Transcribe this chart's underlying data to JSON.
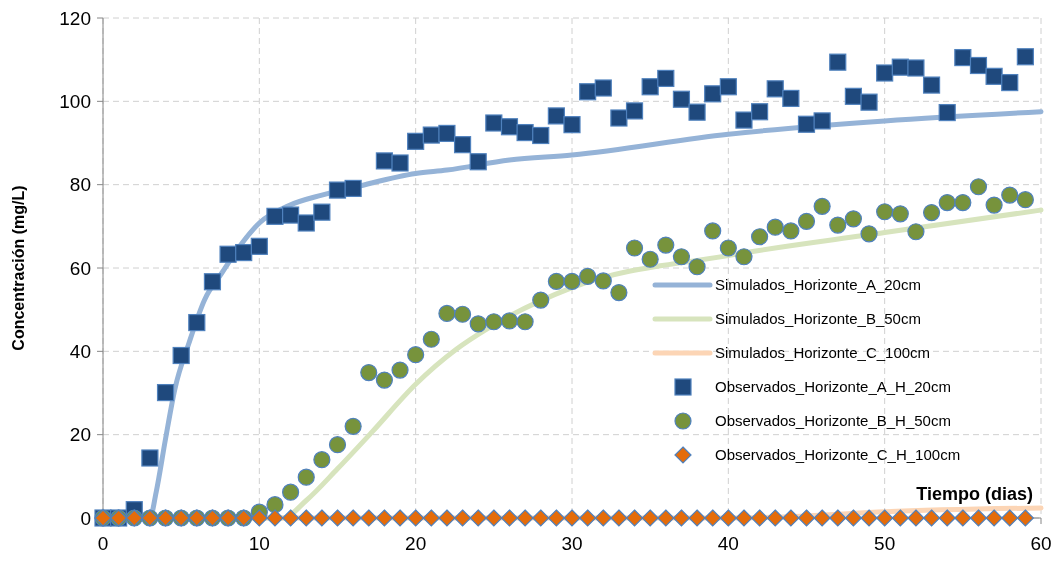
{
  "chart_data": {
    "type": "scatter",
    "xlabel": "Tiempo (dias)",
    "ylabel": "Concentración (mg/L)",
    "x": [
      0,
      1,
      2,
      3,
      4,
      5,
      6,
      7,
      8,
      9,
      10,
      11,
      12,
      13,
      14,
      15,
      16,
      17,
      18,
      19,
      20,
      21,
      22,
      23,
      24,
      25,
      26,
      27,
      28,
      29,
      30,
      31,
      32,
      33,
      34,
      35,
      36,
      37,
      38,
      39,
      40,
      41,
      42,
      43,
      44,
      45,
      46,
      47,
      48,
      49,
      50,
      51,
      52,
      53,
      54,
      55,
      56,
      57,
      58,
      59
    ],
    "xlim": [
      0,
      60
    ],
    "xticks": [
      0,
      10,
      20,
      30,
      40,
      50,
      60
    ],
    "ylim": [
      0,
      120
    ],
    "yticks": [
      0,
      20,
      40,
      60,
      80,
      100,
      120
    ],
    "grid": true,
    "legend": "right",
    "line_style": "solid",
    "series": [
      {
        "name": "Simulados_Horizonte_A_20cm",
        "type": "line",
        "color": "#95b3d7",
        "x": [
          0,
          3,
          3.4,
          4,
          4.6,
          5.5,
          6.5,
          7.6,
          8.9,
          10,
          11.9,
          14,
          16.2,
          20,
          22,
          26,
          30,
          40,
          50,
          60
        ],
        "values": [
          0,
          0,
          6.2,
          19,
          31,
          42,
          52.4,
          58.8,
          66,
          70.8,
          75,
          77.5,
          79.5,
          82.7,
          83.5,
          85.9,
          87.1,
          92.1,
          95.3,
          97.5
        ]
      },
      {
        "name": "Simulados_Horizonte_B_50cm",
        "type": "line",
        "color": "#d7e4bd",
        "x": [
          0,
          11.5,
          13,
          15,
          17.2,
          20,
          22.6,
          24.7,
          30,
          40,
          50,
          60
        ],
        "values": [
          0,
          0,
          4.2,
          11.8,
          20.6,
          32.1,
          40.5,
          45.7,
          55.3,
          63,
          68.5,
          73.9
        ]
      },
      {
        "name": "Simulados_Horizonte_C_100cm",
        "type": "line",
        "color": "#fcd5b5",
        "x": [
          0,
          40,
          45,
          50,
          60
        ],
        "values": [
          0,
          0,
          0.5,
          1.5,
          2.4
        ]
      },
      {
        "name": "Observados_Horizonte_A_H_20cm",
        "type": "scatter",
        "marker": "square",
        "color": "#1f497d",
        "values": [
          0,
          0,
          2,
          14.4,
          30.1,
          39,
          46.9,
          56.7,
          63.3,
          63.7,
          65.2,
          72.4,
          72.7,
          70.8,
          73.4,
          78.7,
          79.1,
          null,
          85.7,
          85.2,
          90.4,
          91.9,
          92.3,
          89.6,
          85.5,
          94.8,
          93.9,
          92.5,
          91.8,
          96.5,
          94.4,
          102.3,
          103.2,
          96,
          97.7,
          103.5,
          105.5,
          100.5,
          97.4,
          101.8,
          103.5,
          95.5,
          97.5,
          103,
          100.7,
          94.5,
          95.3,
          109.4,
          101.2,
          99.8,
          106.8,
          108.2,
          108,
          103.9,
          97.3,
          110.5,
          108.6,
          106,
          104.5,
          110.7
        ]
      },
      {
        "name": "Observados_Horizonte_B_H_50cm",
        "type": "scatter",
        "marker": "circle",
        "color": "#77933c",
        "values": [
          0,
          0,
          0,
          0,
          0,
          0,
          0,
          0,
          0,
          0,
          1.4,
          3.2,
          6.2,
          9.8,
          14,
          17.6,
          22,
          34.9,
          33.1,
          35.5,
          39.2,
          42.9,
          49.1,
          48.9,
          46.6,
          47.1,
          47.3,
          47.1,
          52.3,
          56.8,
          56.8,
          58,
          56.9,
          54.1,
          64.8,
          62.1,
          65.5,
          62.7,
          60.3,
          68.9,
          64.8,
          62.7,
          67.5,
          69.8,
          68.9,
          71.2,
          74.8,
          70.3,
          71.8,
          68.2,
          73.5,
          73,
          68.7,
          73.3,
          75.7,
          75.7,
          79.5,
          75.1,
          77.5,
          76.4
        ]
      },
      {
        "name": "Observados_Horizonte_C_H_100cm",
        "type": "scatter",
        "marker": "diamond",
        "color": "#e46c0a",
        "values": [
          0,
          0,
          0,
          0,
          0,
          0,
          0,
          0,
          0,
          0,
          0,
          0,
          0,
          0,
          0,
          0,
          0,
          0,
          0,
          0,
          0,
          0,
          0,
          0,
          0,
          0,
          0,
          0,
          0,
          0,
          0,
          0,
          0,
          0,
          0,
          0,
          0,
          0,
          0,
          0,
          0,
          0,
          0,
          0,
          0,
          0,
          0,
          0,
          0,
          0,
          0,
          0,
          0,
          0,
          0,
          0,
          0,
          0,
          0,
          0
        ]
      }
    ]
  }
}
